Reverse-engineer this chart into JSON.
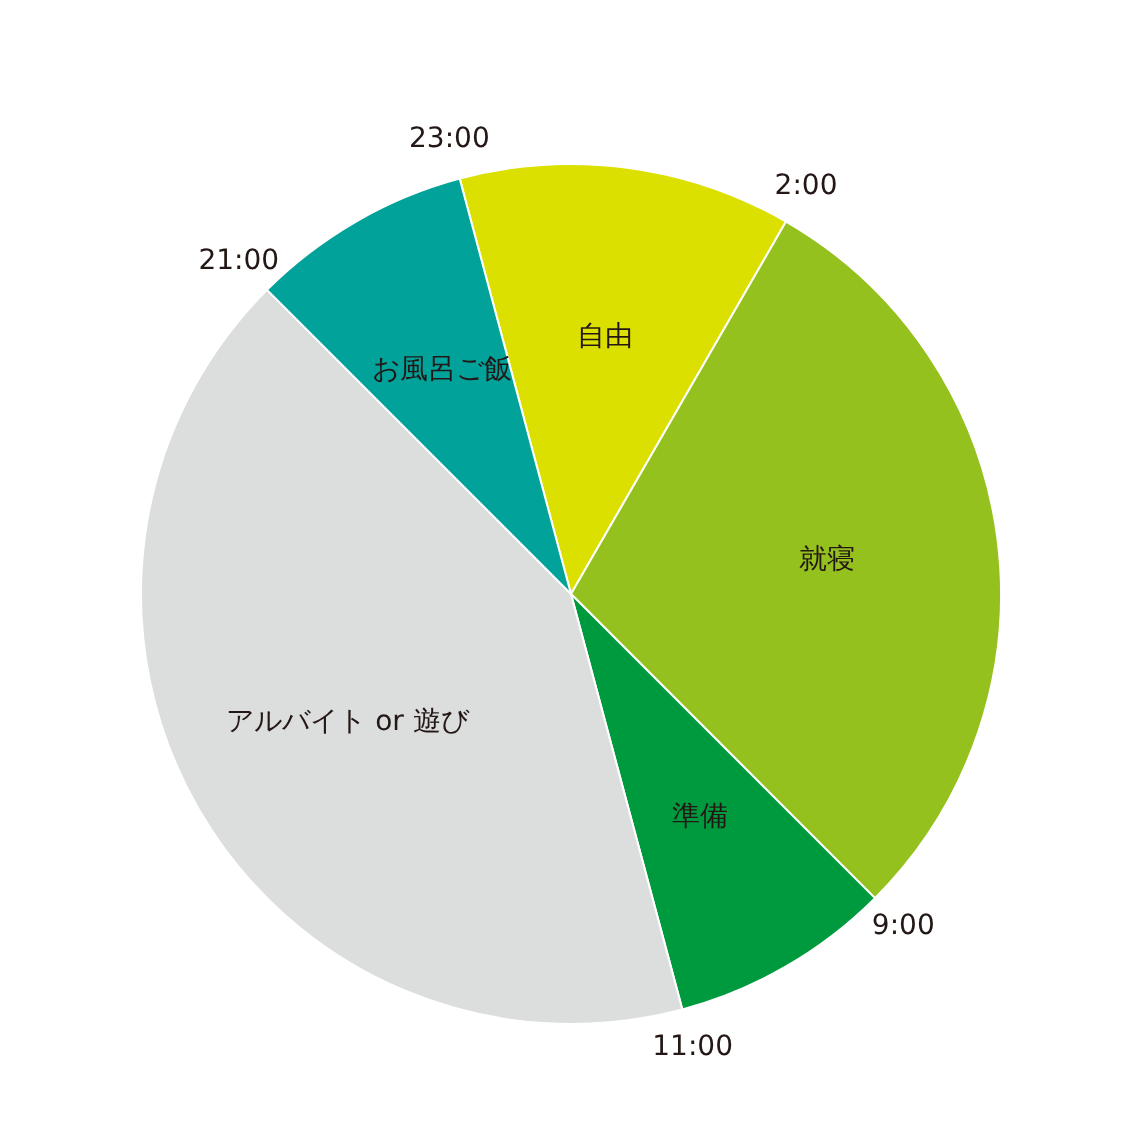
{
  "chart_data": {
    "type": "pie",
    "categories": [
      "自由",
      "就寝",
      "準備",
      "アルバイト or 遊び",
      "お風呂ご飯"
    ],
    "values": [
      12.5,
      29.17,
      8.33,
      41.67,
      8.33
    ],
    "colors": [
      "#dce000",
      "#95c11f",
      "#009a3e",
      "#dcdddd",
      "#00a29a"
    ],
    "annotations": [
      "23:00",
      "2:00",
      "9:00",
      "11:00",
      "21:00"
    ],
    "legend": false
  }
}
